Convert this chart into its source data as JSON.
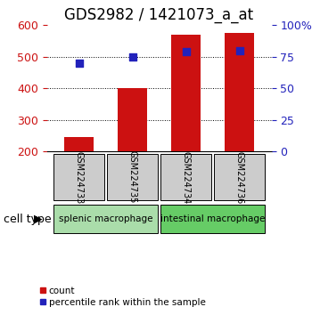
{
  "title": "GDS2982 / 1421073_a_at",
  "samples": [
    "GSM224733",
    "GSM224735",
    "GSM224734",
    "GSM224736"
  ],
  "counts": [
    245,
    400,
    570,
    575
  ],
  "percentiles": [
    70,
    75,
    79,
    80
  ],
  "left_ylim": [
    200,
    600
  ],
  "right_ylim": [
    0,
    100
  ],
  "left_yticks": [
    200,
    300,
    400,
    500,
    600
  ],
  "right_yticks": [
    0,
    25,
    50,
    75,
    100
  ],
  "right_yticklabels": [
    "0",
    "25",
    "50",
    "75",
    "100%"
  ],
  "bar_color": "#cc1111",
  "dot_color": "#2222bb",
  "bar_width": 0.55,
  "groups": [
    {
      "label": "splenic macrophage",
      "indices": [
        0,
        1
      ],
      "color": "#aaddaa"
    },
    {
      "label": "intestinal macrophage",
      "indices": [
        2,
        3
      ],
      "color": "#66cc66"
    }
  ],
  "cell_type_label": "cell type",
  "legend_count_label": "count",
  "legend_pct_label": "percentile rank within the sample",
  "grid_color": "#888888",
  "sample_box_color": "#cccccc",
  "title_fontsize": 12,
  "tick_fontsize": 9,
  "sample_label_fontsize": 7,
  "group_label_fontsize": 7.5,
  "cell_type_fontsize": 9
}
